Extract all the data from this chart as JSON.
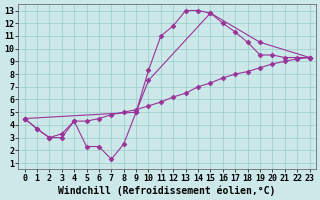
{
  "xlabel": "Windchill (Refroidissement éolien,°C)",
  "background_color": "#cce8e8",
  "line_color": "#993399",
  "xticks": [
    0,
    1,
    2,
    3,
    4,
    5,
    6,
    7,
    8,
    9,
    10,
    11,
    12,
    13,
    14,
    15,
    16,
    17,
    18,
    19,
    20,
    21,
    22,
    23
  ],
  "yticks": [
    1,
    2,
    3,
    4,
    5,
    6,
    7,
    8,
    9,
    10,
    11,
    12,
    13
  ],
  "line1_x": [
    0,
    1,
    2,
    3,
    4,
    5,
    6,
    7,
    8,
    9,
    10,
    11,
    12,
    13,
    14,
    15,
    16,
    17,
    18,
    19,
    20,
    21,
    22,
    23
  ],
  "line1_y": [
    4.5,
    3.7,
    3.0,
    3.0,
    4.3,
    2.3,
    2.3,
    1.3,
    2.5,
    5.0,
    8.3,
    11.0,
    11.8,
    13.0,
    13.0,
    12.8,
    12.0,
    11.3,
    10.5,
    9.5,
    9.5,
    9.3,
    9.3,
    9.3
  ],
  "line2_x": [
    0,
    1,
    2,
    3,
    4,
    5,
    6,
    7,
    8,
    9,
    10,
    11,
    12,
    13,
    14,
    15,
    16,
    17,
    18,
    19,
    20,
    21,
    22,
    23
  ],
  "line2_y": [
    4.5,
    3.7,
    3.0,
    3.3,
    4.3,
    4.3,
    4.5,
    4.8,
    5.0,
    5.2,
    5.5,
    5.8,
    6.2,
    6.5,
    7.0,
    7.3,
    7.7,
    8.0,
    8.2,
    8.5,
    8.8,
    9.0,
    9.2,
    9.3
  ],
  "line3_x": [
    0,
    9,
    10,
    15,
    19,
    23
  ],
  "line3_y": [
    4.5,
    5.0,
    7.5,
    12.8,
    10.5,
    9.3
  ],
  "grid_color": "#99cccc",
  "marker": "D",
  "marker_size": 2.5,
  "line_width": 0.8,
  "font_size": 7,
  "tick_font_size": 6
}
